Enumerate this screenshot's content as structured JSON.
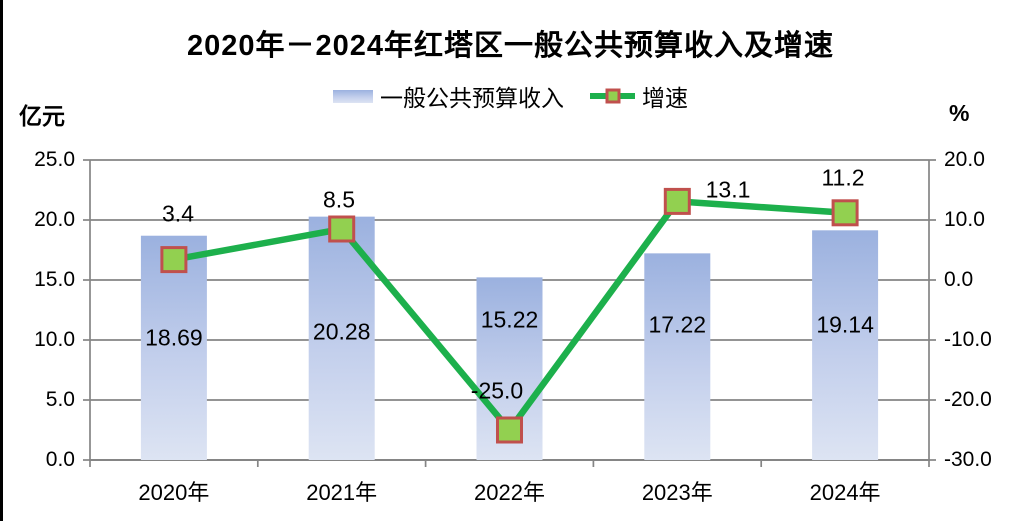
{
  "figure": {
    "title": "2020年－2024年红塔区一般公共预算收入及增速",
    "left_axis_unit": "亿元",
    "right_axis_unit": "%"
  },
  "legend": {
    "items": [
      {
        "label": "一般公共预算收入",
        "swatch": "blue-gradient-bar"
      },
      {
        "label": "增速",
        "swatch": "green-line-square-marker"
      }
    ]
  },
  "chart_data": {
    "type": "bar+line combo",
    "title": "2020年－2024年红塔区一般公共预算收入及增速",
    "categories": [
      "2020年",
      "2021年",
      "2022年",
      "2023年",
      "2024年"
    ],
    "series": [
      {
        "name": "一般公共预算收入",
        "type": "bar",
        "axis": "left",
        "unit": "亿元",
        "values": [
          18.69,
          20.28,
          15.22,
          17.22,
          19.14
        ],
        "data_labels": [
          "18.69",
          "20.28",
          "15.22",
          "17.22",
          "19.14"
        ]
      },
      {
        "name": "增速",
        "type": "line",
        "axis": "right",
        "unit": "%",
        "values": [
          3.4,
          8.5,
          -25.0,
          13.1,
          11.2
        ],
        "data_labels": [
          "3.4",
          "8.5",
          "-25.0",
          "13.1",
          "11.2"
        ]
      }
    ],
    "left_axis": {
      "min": 0,
      "max": 25,
      "tick_labels": [
        "0.0",
        "5.0",
        "10.0",
        "15.0",
        "20.0",
        "25.0"
      ]
    },
    "right_axis": {
      "min": -30,
      "max": 20,
      "tick_labels": [
        "-30.0",
        "-20.0",
        "-10.0",
        "0.0",
        "10.0",
        "20.0"
      ]
    },
    "grid": true,
    "legend_position": "top",
    "colors": {
      "bar_gradient_top": "#9bb1df",
      "bar_gradient_mid": "#c3cfec",
      "bar_gradient_bottom": "#dde4f3",
      "line": "#1db04c",
      "marker_fill": "#92d050",
      "marker_border": "#c0504d",
      "gridline": "#858585",
      "text": "#000000"
    }
  }
}
